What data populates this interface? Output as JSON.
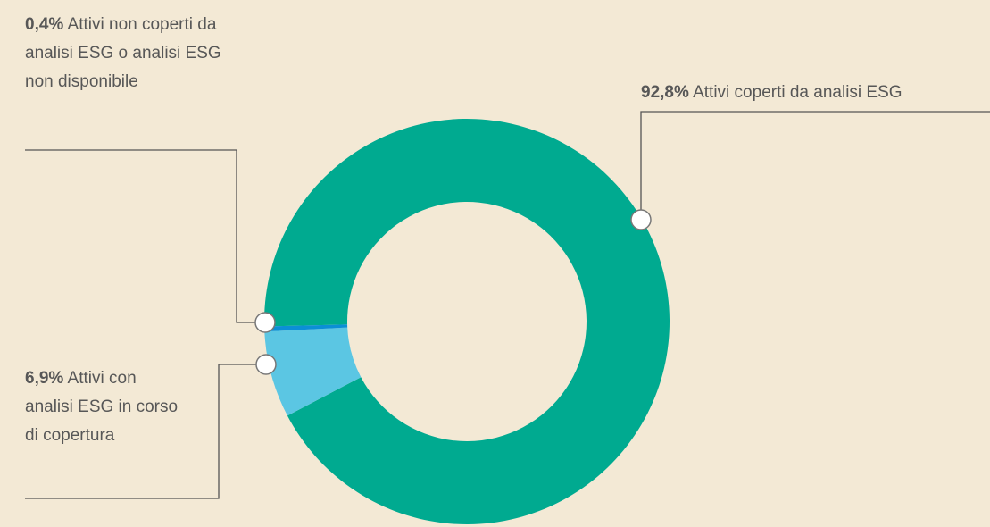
{
  "chart_data": {
    "type": "donut",
    "categories": [
      "Attivi coperti da analisi ESG",
      "Attivi con analisi ESG in corso di copertura",
      "Attivi non coperti da analisi ESG o analisi ESG non disponibile"
    ],
    "values": [
      92.8,
      6.9,
      0.4
    ],
    "value_labels": [
      "92,8%",
      "6,9%",
      "0,4%"
    ],
    "colors": [
      "#00aa90",
      "#5bc6e3",
      "#0b8fd6"
    ]
  }
}
